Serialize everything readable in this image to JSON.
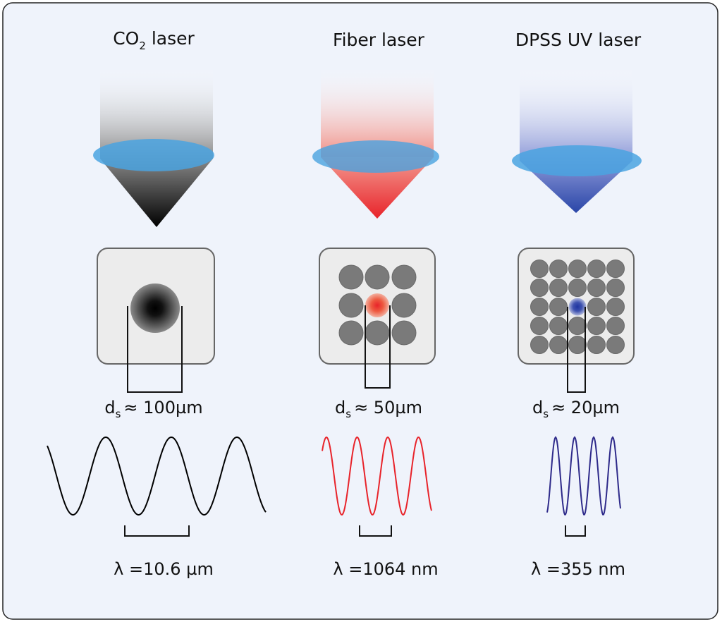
{
  "lasers": [
    {
      "title": "CO",
      "title_sub": "2",
      "title_rest": " laser",
      "spot_label": "≈ 100µm",
      "wavelength_label": "λ =10.6 µm",
      "beam_color": "#000000",
      "spot_color": "#000000"
    },
    {
      "title": "Fiber laser",
      "spot_label": "≈ 50µm",
      "wavelength_label": "λ =1064 nm",
      "beam_color": "#e8232a",
      "spot_color": "#e8232a"
    },
    {
      "title": "DPSS UV laser",
      "spot_label": "≈ 20µm",
      "wavelength_label": "λ =355 nm",
      "beam_color": "#2a46a8",
      "spot_color": "#1f35a0"
    }
  ],
  "spot_symbol": "d",
  "spot_symbol_sub": "s",
  "lens_color": "#4aa3e0",
  "wave_colors": [
    "#000000",
    "#e8232a",
    "#2e2a8a"
  ]
}
